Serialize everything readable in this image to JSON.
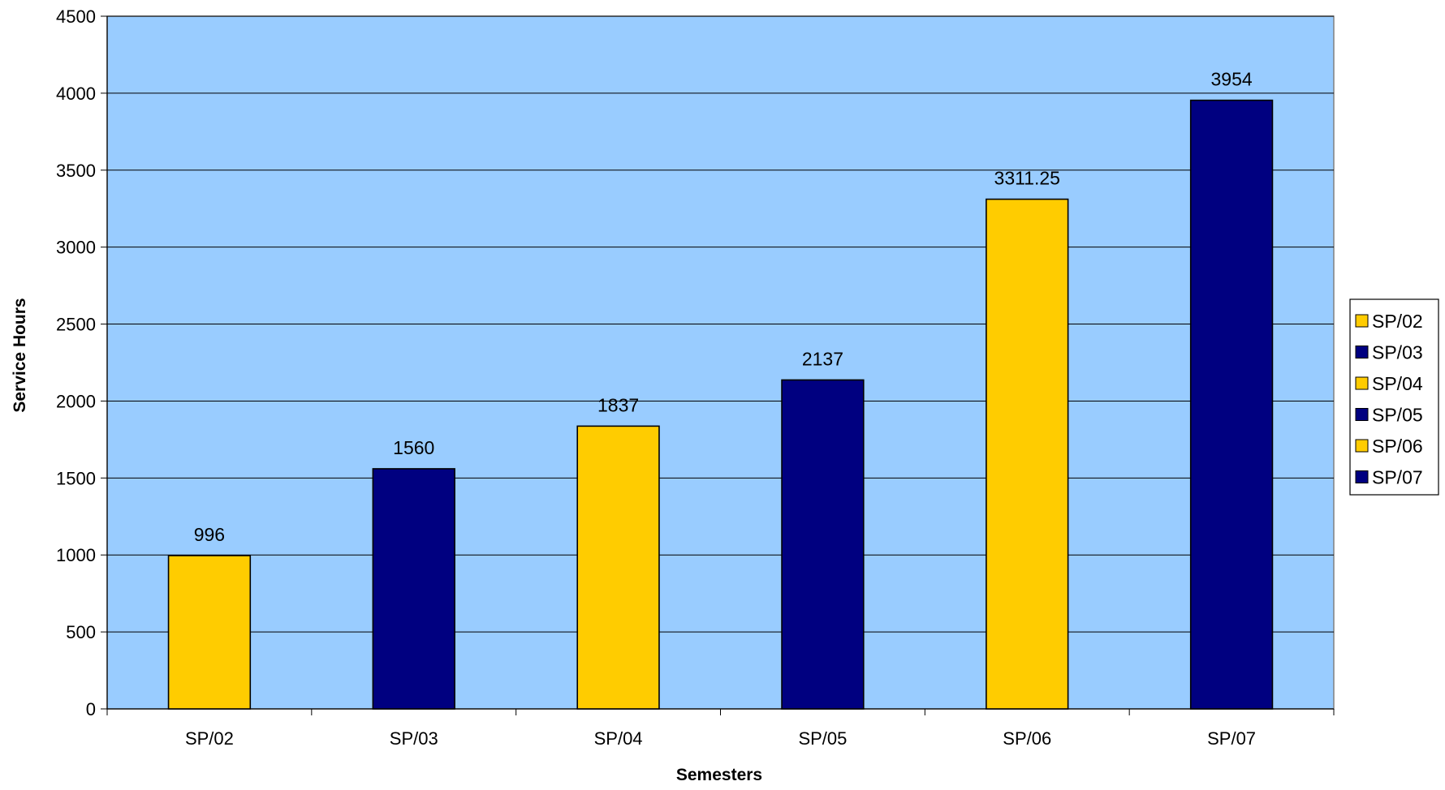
{
  "chart_data": {
    "type": "bar",
    "title": "",
    "xlabel": "Semesters",
    "ylabel": "Service Hours",
    "ylim": [
      0,
      4500
    ],
    "ytick_step": 500,
    "yticks": [
      "0",
      "500",
      "1000",
      "1500",
      "2000",
      "2500",
      "3000",
      "3500",
      "4000",
      "4500"
    ],
    "grid": true,
    "legend_position": "right",
    "plot_background": "#99CCFF",
    "series": [
      {
        "name": "SP/02",
        "category": "SP/02",
        "value": 996,
        "label": "996",
        "color": "#FFCC00"
      },
      {
        "name": "SP/03",
        "category": "SP/03",
        "value": 1560,
        "label": "1560",
        "color": "#000080"
      },
      {
        "name": "SP/04",
        "category": "SP/04",
        "value": 1837,
        "label": "1837",
        "color": "#FFCC00"
      },
      {
        "name": "SP/05",
        "category": "SP/05",
        "value": 2137,
        "label": "2137",
        "color": "#000080"
      },
      {
        "name": "SP/06",
        "category": "SP/06",
        "value": 3311.25,
        "label": "3311.25",
        "color": "#FFCC00"
      },
      {
        "name": "SP/07",
        "category": "SP/07",
        "value": 3954,
        "label": "3954",
        "color": "#000080"
      }
    ]
  }
}
